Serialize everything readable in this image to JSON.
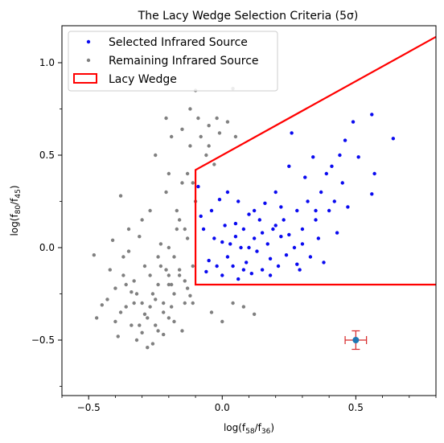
{
  "chart_data": {
    "type": "scatter",
    "title": "The Lacy Wedge Selection Criteria (5σ)",
    "xlabel": "log(f58/f36)",
    "xlabel_parts": {
      "base": "log(f",
      "sub1": "58",
      "mid": "/f",
      "sub2": "36",
      "end": ")"
    },
    "ylabel": "log(f80/f45)",
    "ylabel_parts": {
      "base": "log(f",
      "sub1": "80",
      "mid": "/f",
      "sub2": "45",
      "end": ")"
    },
    "xlim": [
      -0.6,
      0.8
    ],
    "ylim": [
      -0.8,
      1.2
    ],
    "x_ticks": [
      {
        "value": -0.5,
        "label": "−0.5"
      },
      {
        "value": 0.0,
        "label": "0.0"
      },
      {
        "value": 0.5,
        "label": "0.5"
      }
    ],
    "y_ticks": [
      {
        "value": -0.5,
        "label": "−0.5"
      },
      {
        "value": 0.0,
        "label": "0.0"
      },
      {
        "value": 0.5,
        "label": "0.5"
      },
      {
        "value": 1.0,
        "label": "1.0"
      }
    ],
    "legend_position": "top-left",
    "colors": {
      "selected": "#0a0af0",
      "remaining": "#808080",
      "wedge": "#ff0000",
      "error_point": "#1f77b4",
      "error_bar": "#d62728"
    },
    "series": [
      {
        "name": "Selected Infrared Source",
        "points": [
          [
            -0.09,
            0.33
          ],
          [
            -0.08,
            0.17
          ],
          [
            -0.07,
            0.1
          ],
          [
            -0.06,
            -0.13
          ],
          [
            -0.04,
            0.2
          ],
          [
            -0.03,
            0.05
          ],
          [
            -0.02,
            -0.1
          ],
          [
            -0.01,
            0.26
          ],
          [
            0.0,
            -0.15
          ],
          [
            0.01,
            0.12
          ],
          [
            0.02,
            -0.05
          ],
          [
            0.03,
            0.02
          ],
          [
            0.04,
            -0.1
          ],
          [
            0.05,
            0.13
          ],
          [
            0.06,
            -0.17
          ],
          [
            0.07,
            0.0
          ],
          [
            0.08,
            0.1
          ],
          [
            0.09,
            -0.08
          ],
          [
            0.1,
            0.18
          ],
          [
            0.11,
            -0.14
          ],
          [
            0.12,
            0.05
          ],
          [
            0.13,
            -0.02
          ],
          [
            0.14,
            0.15
          ],
          [
            0.15,
            -0.12
          ],
          [
            0.16,
            0.24
          ],
          [
            0.17,
            0.02
          ],
          [
            0.18,
            -0.06
          ],
          [
            0.19,
            0.1
          ],
          [
            0.2,
            0.3
          ],
          [
            0.21,
            -0.1
          ],
          [
            0.22,
            0.06
          ],
          [
            0.23,
            0.15
          ],
          [
            0.24,
            -0.04
          ],
          [
            0.25,
            0.44
          ],
          [
            0.26,
            0.62
          ],
          [
            0.27,
            0.0
          ],
          [
            0.28,
            0.2
          ],
          [
            0.29,
            -0.12
          ],
          [
            0.3,
            0.1
          ],
          [
            0.31,
            0.38
          ],
          [
            0.32,
            0.25
          ],
          [
            0.33,
            -0.05
          ],
          [
            0.34,
            0.49
          ],
          [
            0.35,
            0.15
          ],
          [
            0.36,
            0.05
          ],
          [
            0.37,
            0.3
          ],
          [
            0.38,
            -0.08
          ],
          [
            0.39,
            0.4
          ],
          [
            0.4,
            0.2
          ],
          [
            0.41,
            0.44
          ],
          [
            0.42,
            0.25
          ],
          [
            0.43,
            0.08
          ],
          [
            0.44,
            0.5
          ],
          [
            0.45,
            0.35
          ],
          [
            0.46,
            0.58
          ],
          [
            0.47,
            0.22
          ],
          [
            0.49,
            0.68
          ],
          [
            0.51,
            0.49
          ],
          [
            0.56,
            0.72
          ],
          [
            0.57,
            0.4
          ],
          [
            0.64,
            0.59
          ],
          [
            0.56,
            0.29
          ],
          [
            -0.05,
            -0.07
          ],
          [
            0.0,
            0.03
          ],
          [
            0.05,
            0.06
          ],
          [
            0.1,
            0.0
          ],
          [
            0.15,
            0.08
          ],
          [
            0.2,
            0.12
          ],
          [
            0.25,
            0.07
          ],
          [
            0.3,
            0.02
          ],
          [
            0.35,
            0.2
          ],
          [
            0.12,
            0.2
          ],
          [
            0.22,
            0.22
          ],
          [
            0.08,
            -0.12
          ],
          [
            0.18,
            -0.15
          ],
          [
            0.28,
            -0.09
          ],
          [
            0.02,
            0.3
          ],
          [
            0.06,
            0.25
          ]
        ]
      },
      {
        "name": "Remaining Infrared Source",
        "points": [
          [
            -0.48,
            -0.04
          ],
          [
            -0.47,
            -0.38
          ],
          [
            -0.45,
            -0.31
          ],
          [
            -0.42,
            -0.12
          ],
          [
            -0.41,
            0.04
          ],
          [
            -0.4,
            -0.22
          ],
          [
            -0.39,
            -0.48
          ],
          [
            -0.38,
            0.28
          ],
          [
            -0.37,
            -0.05
          ],
          [
            -0.36,
            -0.32
          ],
          [
            -0.35,
            0.1
          ],
          [
            -0.34,
            -0.42
          ],
          [
            -0.33,
            -0.18
          ],
          [
            -0.32,
            -0.5
          ],
          [
            -0.31,
            0.06
          ],
          [
            -0.3,
            -0.3
          ],
          [
            -0.29,
            -0.1
          ],
          [
            -0.28,
            -0.38
          ],
          [
            -0.27,
            0.2
          ],
          [
            -0.26,
            -0.25
          ],
          [
            -0.25,
            0.5
          ],
          [
            -0.24,
            -0.45
          ],
          [
            -0.23,
            0.02
          ],
          [
            -0.22,
            -0.35
          ],
          [
            -0.21,
            0.3
          ],
          [
            -0.2,
            -0.2
          ],
          [
            -0.19,
            0.6
          ],
          [
            -0.18,
            -0.4
          ],
          [
            -0.17,
            0.1
          ],
          [
            -0.16,
            -0.15
          ],
          [
            -0.15,
            0.35
          ],
          [
            -0.14,
            -0.3
          ],
          [
            -0.13,
            0.05
          ],
          [
            -0.12,
            0.55
          ],
          [
            -0.11,
            -0.1
          ],
          [
            -0.1,
            0.25
          ],
          [
            -0.1,
            0.85
          ],
          [
            -0.12,
            0.75
          ],
          [
            -0.15,
            0.64
          ],
          [
            -0.05,
            0.66
          ],
          [
            -0.02,
            0.7
          ],
          [
            0.04,
            0.86
          ],
          [
            -0.21,
            0.7
          ],
          [
            -0.2,
            0.4
          ],
          [
            -0.3,
            0.15
          ],
          [
            -0.35,
            -0.02
          ],
          [
            -0.26,
            -0.52
          ],
          [
            -0.28,
            -0.54
          ],
          [
            -0.22,
            -0.47
          ],
          [
            -0.19,
            -0.2
          ],
          [
            -0.23,
            -0.1
          ],
          [
            -0.24,
            -0.2
          ],
          [
            -0.25,
            -0.28
          ],
          [
            -0.27,
            -0.32
          ],
          [
            -0.29,
            -0.36
          ],
          [
            -0.31,
            -0.42
          ],
          [
            -0.33,
            -0.3
          ],
          [
            -0.34,
            -0.24
          ],
          [
            -0.36,
            -0.2
          ],
          [
            -0.37,
            -0.15
          ],
          [
            -0.2,
            0.0
          ],
          [
            -0.18,
            -0.05
          ],
          [
            -0.16,
            -0.12
          ],
          [
            -0.14,
            -0.18
          ],
          [
            -0.13,
            -0.22
          ],
          [
            -0.12,
            -0.26
          ],
          [
            -0.11,
            -0.3
          ],
          [
            -0.17,
            0.2
          ],
          [
            -0.16,
            0.15
          ],
          [
            -0.14,
            0.1
          ],
          [
            -0.13,
            0.4
          ],
          [
            -0.11,
            0.35
          ],
          [
            -0.09,
            0.7
          ],
          [
            -0.08,
            0.6
          ],
          [
            -0.06,
            0.5
          ],
          [
            -0.05,
            0.55
          ],
          [
            -0.03,
            0.45
          ],
          [
            -0.01,
            0.62
          ],
          [
            0.02,
            0.68
          ],
          [
            0.05,
            0.6
          ],
          [
            -0.04,
            -0.35
          ],
          [
            0.0,
            -0.4
          ],
          [
            0.04,
            -0.3
          ],
          [
            0.08,
            -0.32
          ],
          [
            0.12,
            -0.36
          ],
          [
            -0.15,
            -0.45
          ],
          [
            -0.2,
            -0.38
          ],
          [
            -0.25,
            -0.42
          ],
          [
            -0.3,
            -0.46
          ],
          [
            -0.22,
            -0.3
          ],
          [
            -0.19,
            -0.32
          ],
          [
            -0.21,
            -0.12
          ],
          [
            -0.18,
            -0.25
          ],
          [
            -0.2,
            -0.15
          ],
          [
            -0.24,
            -0.05
          ],
          [
            -0.27,
            -0.15
          ],
          [
            -0.32,
            -0.25
          ],
          [
            -0.38,
            -0.35
          ],
          [
            -0.4,
            -0.4
          ],
          [
            -0.43,
            -0.28
          ]
        ]
      }
    ],
    "wedge": {
      "name": "Lacy Wedge",
      "vertices": [
        [
          0.8,
          1.14
        ],
        [
          -0.1,
          0.42
        ],
        [
          -0.1,
          -0.2
        ],
        [
          0.8,
          -0.2
        ]
      ]
    },
    "error_bar": {
      "x": 0.5,
      "y": -0.5,
      "xerr": 0.04,
      "yerr": 0.05
    }
  }
}
